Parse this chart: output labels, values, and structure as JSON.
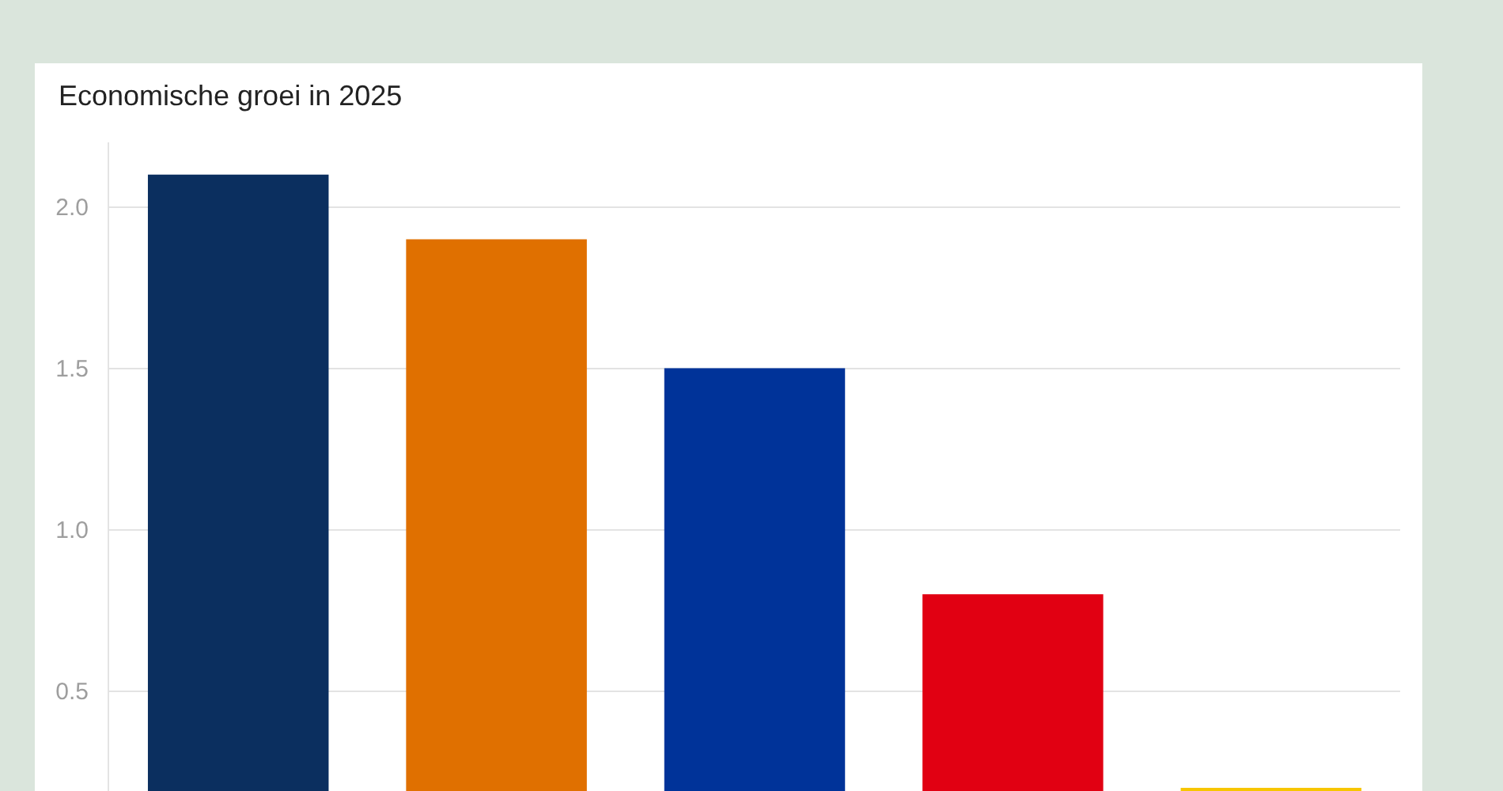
{
  "chart_data": {
    "type": "bar",
    "title": "Economische groei in 2025",
    "categories": [
      null,
      null,
      null,
      null,
      null
    ],
    "values": [
      2.1,
      1.9,
      1.5,
      0.8,
      0.2
    ],
    "colors": [
      "#0b2f5f",
      "#e07000",
      "#003399",
      "#e10012",
      "#f7c600"
    ],
    "ylim": [
      0.19,
      2.2
    ],
    "yticks": [
      0.5,
      {
        "value": 1,
        "label": "1.0"
      },
      1.5,
      {
        "value": 2,
        "label": "2.0"
      }
    ],
    "grid": "y"
  }
}
